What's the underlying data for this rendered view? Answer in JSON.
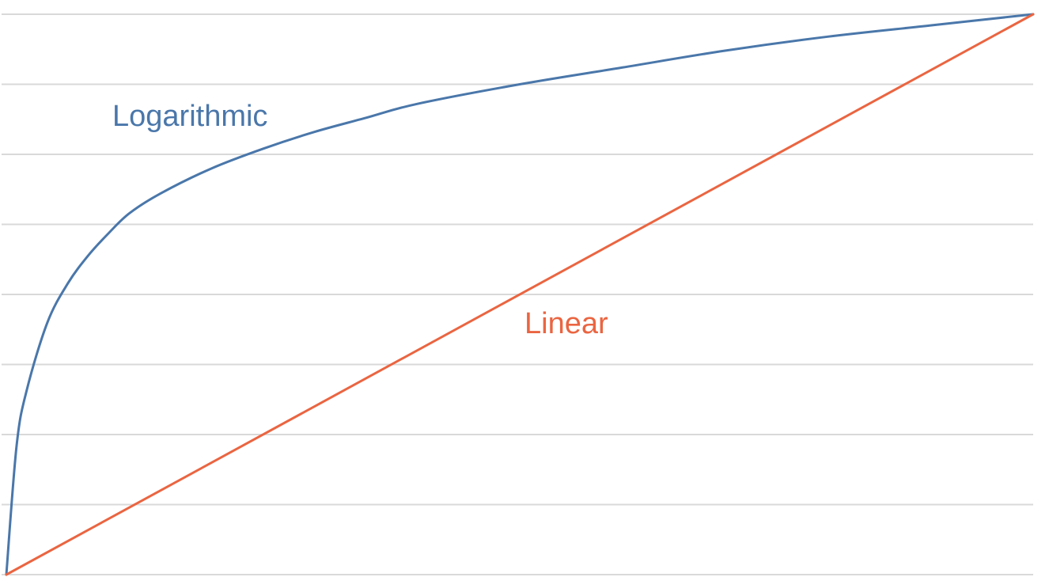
{
  "chart_data": {
    "type": "line",
    "title": "",
    "xlabel": "",
    "ylabel": "",
    "xlim": [
      0,
      1
    ],
    "ylim": [
      0,
      1
    ],
    "grid": true,
    "gridline_count": 8,
    "series": [
      {
        "name": "Logarithmic",
        "color": "#4a77aa",
        "x": [
          0,
          0.01,
          0.02,
          0.04,
          0.06,
          0.08,
          0.1,
          0.12,
          0.15,
          0.2,
          0.25,
          0.3,
          0.35,
          0.4,
          0.5,
          0.6,
          0.7,
          0.8,
          0.9,
          1.0
        ],
        "y": [
          0,
          0.23,
          0.33,
          0.45,
          0.52,
          0.57,
          0.61,
          0.645,
          0.68,
          0.725,
          0.76,
          0.79,
          0.815,
          0.84,
          0.875,
          0.905,
          0.935,
          0.96,
          0.98,
          1.0
        ]
      },
      {
        "name": "Linear",
        "color": "#ea6541",
        "x": [
          0,
          1
        ],
        "y": [
          0,
          1
        ]
      }
    ]
  }
}
